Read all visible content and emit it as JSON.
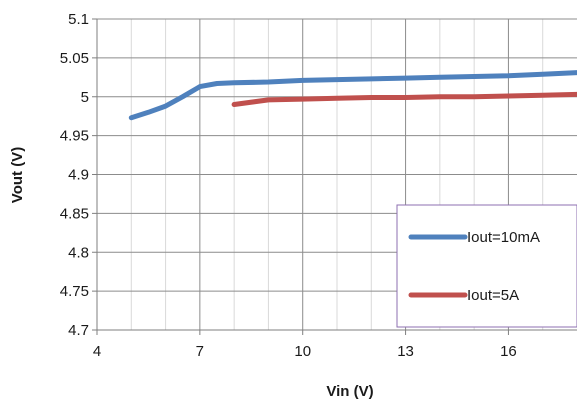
{
  "chart_data": {
    "type": "line",
    "xlabel": "Vin (V)",
    "ylabel": "Vout (V)",
    "xlim": [
      4,
      18
    ],
    "ylim": [
      4.7,
      5.1
    ],
    "x_ticks": [
      4,
      7,
      10,
      13,
      16
    ],
    "y_ticks": [
      4.7,
      4.75,
      4.8,
      4.85,
      4.9,
      4.95,
      5,
      5.05,
      5.1
    ],
    "x_tick_labels": [
      "4",
      "7",
      "10",
      "13",
      "16"
    ],
    "y_tick_labels": [
      "4.7",
      "4.75",
      "4.8",
      "4.85",
      "4.9",
      "4.95",
      "5",
      "5.05",
      "5.1"
    ],
    "x_minor_step": 1,
    "grid": true,
    "legend_position": "bottom-right",
    "series": [
      {
        "name": "Iout=10mA",
        "color": "#4f81bd",
        "points": [
          [
            5,
            4.973
          ],
          [
            5.5,
            4.98
          ],
          [
            6,
            4.988
          ],
          [
            6.5,
            5.0
          ],
          [
            7,
            5.013
          ],
          [
            7.5,
            5.017
          ],
          [
            8,
            5.018
          ],
          [
            9,
            5.019
          ],
          [
            10,
            5.021
          ],
          [
            11,
            5.022
          ],
          [
            12,
            5.023
          ],
          [
            13,
            5.024
          ],
          [
            14,
            5.025
          ],
          [
            15,
            5.026
          ],
          [
            16,
            5.027
          ],
          [
            17,
            5.029
          ],
          [
            18,
            5.031
          ]
        ]
      },
      {
        "name": "Iout=5A",
        "color": "#c0504d",
        "points": [
          [
            8,
            4.99
          ],
          [
            9,
            4.996
          ],
          [
            10,
            4.997
          ],
          [
            11,
            4.998
          ],
          [
            12,
            4.999
          ],
          [
            13,
            4.999
          ],
          [
            14,
            5.0
          ],
          [
            15,
            5.0
          ],
          [
            16,
            5.001
          ],
          [
            17,
            5.002
          ],
          [
            18,
            5.003
          ]
        ]
      }
    ]
  }
}
